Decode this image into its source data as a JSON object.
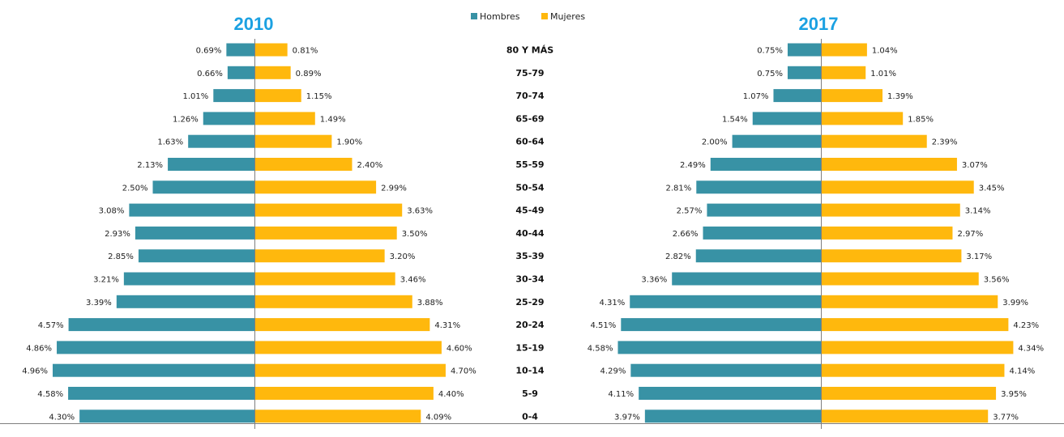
{
  "chart_data": {
    "type": "bar",
    "orientation": "horizontal-population-pyramid",
    "categories": [
      "80 Y MÁS",
      "75-79",
      "70-74",
      "65-69",
      "60-64",
      "55-59",
      "50-54",
      "45-49",
      "40-44",
      "35-39",
      "30-34",
      "25-29",
      "20-24",
      "15-19",
      "10-14",
      "5-9",
      "0-4"
    ],
    "legend": {
      "placement": "top-center",
      "items": [
        "Hombres",
        "Mujeres"
      ]
    },
    "colors": {
      "Hombres": "#3892a5",
      "Mujeres": "#ffb80d",
      "title": "#1ba1e2",
      "axis": "#7f7f7f"
    },
    "grid": false,
    "panels": [
      {
        "title": "2010",
        "series": [
          {
            "name": "Hombres",
            "values": [
              0.69,
              0.66,
              1.01,
              1.26,
              1.63,
              2.13,
              2.5,
              3.08,
              2.93,
              2.85,
              3.21,
              3.39,
              4.57,
              4.86,
              4.96,
              4.58,
              4.3
            ],
            "labels": [
              "0.69%",
              "0.66%",
              "1.01%",
              "1.26%",
              "1.63%",
              "2.13%",
              "2.50%",
              "3.08%",
              "2.93%",
              "2.85%",
              "3.21%",
              "3.39%",
              "4.57%",
              "4.86%",
              "4.96%",
              "4.58%",
              "4.30%"
            ]
          },
          {
            "name": "Mujeres",
            "values": [
              0.81,
              0.89,
              1.15,
              1.49,
              1.9,
              2.4,
              2.99,
              3.63,
              3.5,
              3.2,
              3.46,
              3.88,
              4.31,
              4.6,
              4.7,
              4.4,
              4.09
            ],
            "labels": [
              "0.81%",
              "0.89%",
              "1.15%",
              "1.49%",
              "1.90%",
              "2.40%",
              "2.99%",
              "3.63%",
              "3.50%",
              "3.20%",
              "3.46%",
              "3.88%",
              "4.31%",
              "4.60%",
              "4.70%",
              "4.40%",
              "4.09%"
            ]
          }
        ]
      },
      {
        "title": "2017",
        "series": [
          {
            "name": "Hombres",
            "values": [
              0.75,
              0.75,
              1.07,
              1.54,
              2.0,
              2.49,
              2.81,
              2.57,
              2.66,
              2.82,
              3.36,
              4.31,
              4.51,
              4.58,
              4.29,
              4.11,
              3.97
            ],
            "labels": [
              "0.75%",
              "0.75%",
              "1.07%",
              "1.54%",
              "2.00%",
              "2.49%",
              "2.81%",
              "2.57%",
              "2.66%",
              "2.82%",
              "3.36%",
              "4.31%",
              "4.51%",
              "4.58%",
              "4.29%",
              "4.11%",
              "3.97%"
            ]
          },
          {
            "name": "Mujeres",
            "values": [
              1.04,
              1.01,
              1.39,
              1.85,
              2.39,
              3.07,
              3.45,
              3.14,
              2.97,
              3.17,
              3.56,
              3.99,
              4.23,
              4.34,
              4.14,
              3.95,
              3.77
            ],
            "labels": [
              "1.04%",
              "1.01%",
              "1.39%",
              "1.85%",
              "2.39%",
              "3.07%",
              "3.45%",
              "3.14%",
              "2.97%",
              "3.17%",
              "3.56%",
              "3.99%",
              "4.23%",
              "4.34%",
              "4.14%",
              "3.95%",
              "3.77%"
            ]
          }
        ]
      }
    ]
  }
}
